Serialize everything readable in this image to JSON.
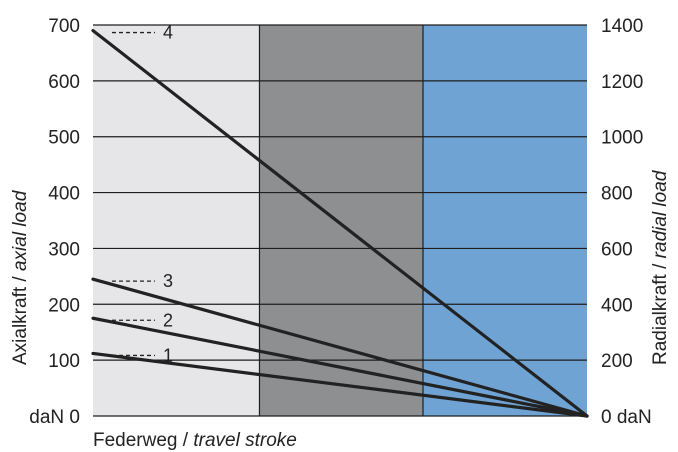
{
  "chart_data": {
    "type": "line",
    "xlabel": {
      "main": "Federweg",
      "sep": " / ",
      "italic": "travel stroke"
    },
    "ylabel_left": {
      "main": "Axialkraft",
      "sep": " / ",
      "italic": "axial load"
    },
    "ylabel_right": {
      "main": "Radialkraft",
      "sep": " / ",
      "italic": "radial load"
    },
    "left_axis": {
      "ylim": [
        0,
        700
      ],
      "ticks": [
        100,
        200,
        300,
        400,
        500,
        600,
        700
      ],
      "zero_label": "daN 0"
    },
    "right_axis": {
      "ylim": [
        0,
        1400
      ],
      "ticks": [
        200,
        400,
        600,
        800,
        1000,
        1200,
        1400
      ],
      "zero_label": "0 daN"
    },
    "xlim": [
      0,
      1
    ],
    "grid": true,
    "zones": [
      {
        "from": 0,
        "to": 0.337,
        "color": "#e6e6e8"
      },
      {
        "from": 0.337,
        "to": 0.668,
        "color": "#8e8f91"
      },
      {
        "from": 0.668,
        "to": 1,
        "color": "#6fa3d4"
      }
    ],
    "series": [
      {
        "name": "4",
        "x": [
          0,
          1
        ],
        "y": [
          690,
          0
        ]
      },
      {
        "name": "3",
        "x": [
          0,
          1
        ],
        "y": [
          245,
          0
        ]
      },
      {
        "name": "2",
        "x": [
          0,
          1
        ],
        "y": [
          175,
          0
        ]
      },
      {
        "name": "1",
        "x": [
          0,
          1
        ],
        "y": [
          112,
          0
        ]
      }
    ],
    "line_color": "#222222",
    "grid_color": "#1e1e1e"
  }
}
